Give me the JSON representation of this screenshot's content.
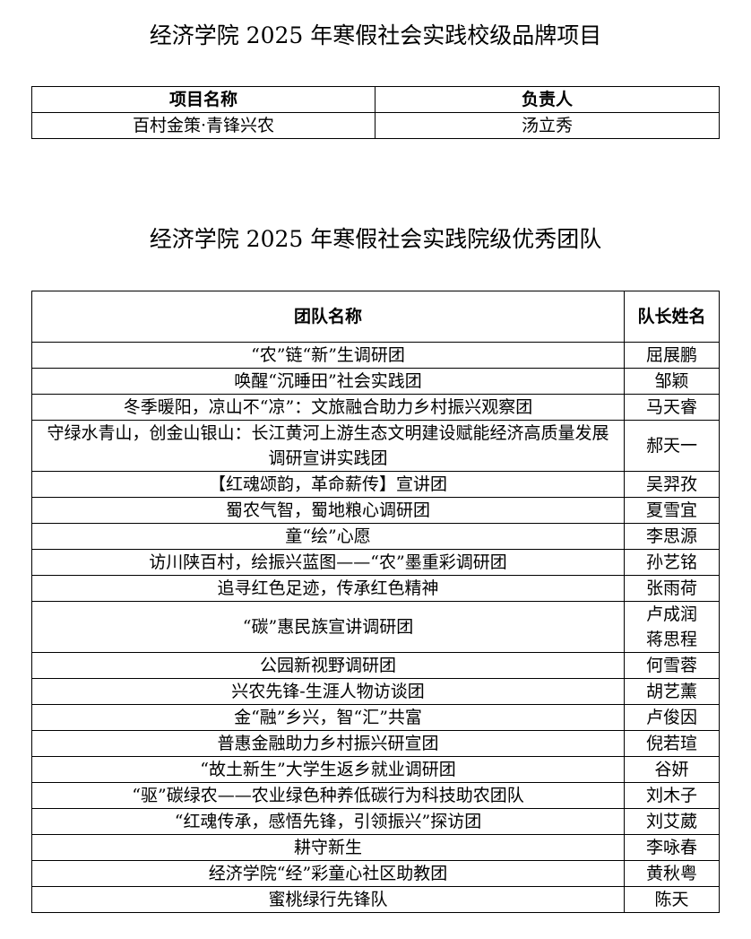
{
  "brand_section": {
    "title": "经济学院 2025 年寒假社会实践校级品牌项目",
    "headers": [
      "项目名称",
      "负责人"
    ],
    "rows": [
      {
        "name": "百村金策·青锋兴农",
        "leader": "汤立秀"
      }
    ]
  },
  "team_section": {
    "title": "经济学院 2025 年寒假社会实践院级优秀团队",
    "headers": [
      "团队名称",
      "队长姓名"
    ],
    "rows": [
      {
        "name": "“农”链“新”生调研团",
        "leader": "屈展鹏"
      },
      {
        "name": "唤醒“沉睡田”社会实践团",
        "leader": "邹颖"
      },
      {
        "name": "冬季暖阳，凉山不“凉”：文旅融合助力乡村振兴观察团",
        "leader": "马天睿"
      },
      {
        "name": "守绿水青山，创金山银山：长江黄河上游生态文明建设赋能经济高质量发展调研宣讲实践团",
        "leader": "郝天一"
      },
      {
        "name": "【红魂颂韵，革命薪传】宣讲团",
        "leader": "吴羿孜"
      },
      {
        "name": "蜀农气智，蜀地粮心调研团",
        "leader": "夏雪宜"
      },
      {
        "name": "童“绘”心愿",
        "leader": "李思源"
      },
      {
        "name": "访川陕百村，绘振兴蓝图——“农”墨重彩调研团",
        "leader": "孙艺铭"
      },
      {
        "name": "追寻红色足迹，传承红色精神",
        "leader": "张雨荷"
      },
      {
        "name": "“碳”惠民族宣讲调研团",
        "leader": "卢成润 蒋思程"
      },
      {
        "name": "公园新视野调研团",
        "leader": "何雪蓉"
      },
      {
        "name": "兴农先锋-生涯人物访谈团",
        "leader": "胡艺薰"
      },
      {
        "name": "金“融”乡兴，智“汇”共富",
        "leader": "卢俊因"
      },
      {
        "name": "普惠金融助力乡村振兴研宣团",
        "leader": "倪若瑄"
      },
      {
        "name": "“故土新生”大学生返乡就业调研团",
        "leader": "谷妍"
      },
      {
        "name": "“驱”碳绿农——农业绿色种养低碳行为科技助农团队",
        "leader": "刘木子"
      },
      {
        "name": "“红魂传承，感悟先锋，引领振兴”探访团",
        "leader": "刘艾葳"
      },
      {
        "name": "耕守新生",
        "leader": "李咏春"
      },
      {
        "name": "经济学院“经”彩童心社区助教团",
        "leader": "黄秋粤"
      },
      {
        "name": "蜜桃绿行先锋队",
        "leader": "陈天"
      }
    ]
  }
}
